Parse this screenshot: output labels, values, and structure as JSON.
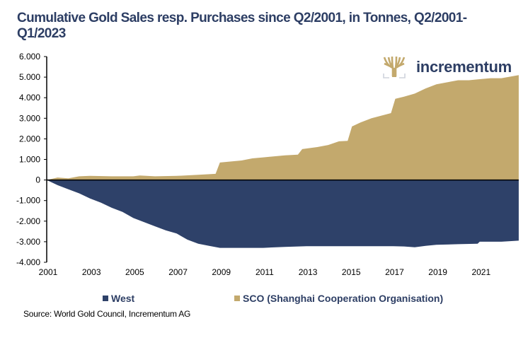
{
  "chart_data": {
    "type": "area",
    "title": "Cumulative Gold Sales resp. Purchases since Q2/2001, in Tonnes, Q2/2001-Q1/2023",
    "xlabel": "",
    "ylabel": "",
    "ylim": [
      -4000,
      6000
    ],
    "xlim": [
      2001,
      2023
    ],
    "yticks": [
      6000,
      5000,
      4000,
      3000,
      2000,
      1000,
      0,
      -1000,
      -2000,
      -3000,
      -4000
    ],
    "ytick_labels": [
      "6.000",
      "5.000",
      "4.000",
      "3.000",
      "2.000",
      "1.000",
      "0",
      "-1.000",
      "-2.000",
      "-3.000",
      "-4.000"
    ],
    "xticks": [
      2001,
      2003,
      2005,
      2007,
      2009,
      2011,
      2013,
      2015,
      2017,
      2019,
      2021
    ],
    "xtick_labels": [
      "2001",
      "2003",
      "2005",
      "2007",
      "2009",
      "2011",
      "2013",
      "2015",
      "2017",
      "2019",
      "2021"
    ],
    "grid": false,
    "legend_position": "bottom",
    "series": [
      {
        "name": "West",
        "color": "#2e4169",
        "x": [
          2001.0,
          2001.5,
          2002.0,
          2002.5,
          2003.0,
          2003.5,
          2004.0,
          2004.5,
          2005.0,
          2005.5,
          2006.0,
          2006.5,
          2007.0,
          2007.5,
          2008.0,
          2008.5,
          2009.0,
          2010.0,
          2011.0,
          2012.0,
          2013.0,
          2014.0,
          2015.0,
          2016.0,
          2017.0,
          2017.5,
          2018.0,
          2018.5,
          2019.0,
          2020.0,
          2020.9,
          2021.0,
          2022.0,
          2022.8
        ],
        "values": [
          0,
          -250,
          -450,
          -650,
          -900,
          -1100,
          -1350,
          -1550,
          -1850,
          -2050,
          -2250,
          -2450,
          -2600,
          -2900,
          -3100,
          -3200,
          -3300,
          -3300,
          -3300,
          -3250,
          -3220,
          -3220,
          -3220,
          -3220,
          -3220,
          -3230,
          -3270,
          -3200,
          -3150,
          -3120,
          -3100,
          -3000,
          -3000,
          -2950
        ]
      },
      {
        "name": "SCO (Shanghai Cooperation Organisation)",
        "color": "#c3a96d",
        "x": [
          2001.0,
          2001.5,
          2002.0,
          2002.5,
          2003.0,
          2004.0,
          2005.0,
          2005.3,
          2006.0,
          2007.0,
          2008.0,
          2008.8,
          2009.0,
          2010.0,
          2010.5,
          2011.0,
          2012.0,
          2012.6,
          2012.8,
          2013.5,
          2014.0,
          2014.5,
          2014.9,
          2015.1,
          2015.5,
          2016.0,
          2016.9,
          2017.1,
          2017.5,
          2018.0,
          2018.5,
          2019.0,
          2019.5,
          2020.0,
          2020.5,
          2021.0,
          2021.5,
          2022.0,
          2022.8
        ],
        "values": [
          0,
          120,
          80,
          180,
          200,
          180,
          180,
          220,
          180,
          200,
          250,
          300,
          850,
          950,
          1050,
          1100,
          1200,
          1230,
          1500,
          1600,
          1700,
          1880,
          1900,
          2600,
          2800,
          3000,
          3250,
          3950,
          4050,
          4200,
          4450,
          4650,
          4750,
          4850,
          4850,
          4900,
          4950,
          4950,
          5100
        ]
      }
    ]
  },
  "logo": {
    "name": "incrementum"
  },
  "legend": {
    "west": "West",
    "sco": "SCO (Shanghai Cooperation Organisation)"
  },
  "source": "Source: World Gold Council, Incrementum AG"
}
